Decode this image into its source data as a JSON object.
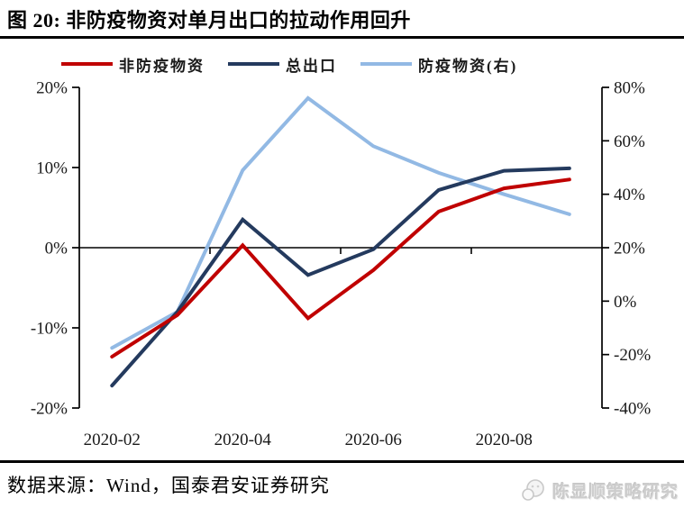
{
  "header": {
    "title": "图 20:  非防疫物资对单月出口的拉动作用回升"
  },
  "chart_data": {
    "type": "line",
    "x": [
      "2020-02",
      "2020-03",
      "2020-04",
      "2020-05",
      "2020-06",
      "2020-07",
      "2020-08",
      "2020-09"
    ],
    "x_tick_labels": [
      "2020-02",
      "2020-04",
      "2020-06",
      "2020-08"
    ],
    "series": [
      {
        "name": "非防疫物资",
        "axis": "left",
        "color": "#c00000",
        "values": [
          -13.6,
          -8.4,
          0.3,
          -8.8,
          -2.8,
          4.5,
          7.4,
          8.5
        ]
      },
      {
        "name": "总出口",
        "axis": "left",
        "color": "#243a5e",
        "values": [
          -17.2,
          -8.0,
          3.5,
          -3.4,
          -0.2,
          7.2,
          9.6,
          9.9
        ]
      },
      {
        "name": "防疫物资(右)",
        "axis": "right",
        "color": "#92b9e4",
        "values": [
          -17.5,
          -4.0,
          49.0,
          76.0,
          58.0,
          48.0,
          40.0,
          32.5
        ]
      }
    ],
    "left_axis": {
      "min": -20,
      "max": 20,
      "tick_values": [
        20,
        10,
        0,
        -10,
        -20
      ],
      "tick_labels": [
        "20%",
        "10%",
        "0%",
        "-10%",
        "-20%"
      ]
    },
    "right_axis": {
      "min": -40,
      "max": 80,
      "tick_values": [
        80,
        60,
        40,
        20,
        0,
        -20,
        -40
      ],
      "tick_labels": [
        "80%",
        "60%",
        "40%",
        "20%",
        "0%",
        "-20%",
        "-40%"
      ]
    },
    "grid": "off",
    "legend_position": "top",
    "axis_color": "#000000"
  },
  "footer": {
    "source": "数据来源：Wind，国泰君安证券研究",
    "watermark": "陈显顺策略研究"
  }
}
